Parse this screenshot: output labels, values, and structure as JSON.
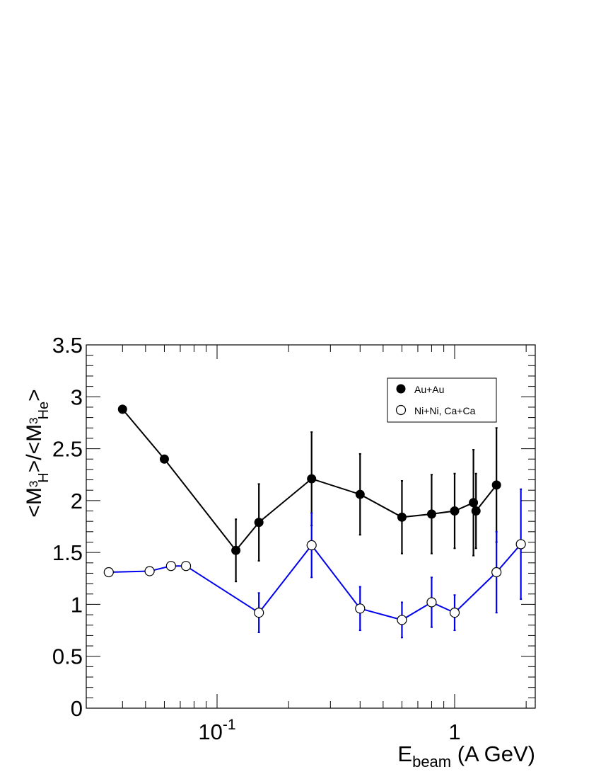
{
  "chart_data": {
    "type": "scatter",
    "xscale": "log",
    "xlim": [
      0.03,
      2.4
    ],
    "ylim": [
      0,
      3.5
    ],
    "ylabel": "<M3H>/<M3He>",
    "ylabel_parts": {
      "open": "<M",
      "sup1": "3",
      "sub1": "H",
      "mid": ">/<M",
      "sup2": "3",
      "sub2": "He",
      "close": ">"
    },
    "xlabel": "Ebeam (A GeV)",
    "xlabel_parts": {
      "main": "E",
      "sub": "beam",
      "rest": " (A GeV)"
    },
    "x_ticks": [
      {
        "value": 0.1,
        "base": "10",
        "exp": "-1"
      },
      {
        "value": 1,
        "base": "1",
        "exp": ""
      }
    ],
    "y_ticks": [
      "0",
      "0.5",
      "1",
      "1.5",
      "2",
      "2.5",
      "3",
      "3.5"
    ],
    "grid": false,
    "legend_position": "top-right",
    "series": [
      {
        "name": "Au+Au",
        "color": "#000000",
        "marker": "filled-circle",
        "points": [
          {
            "x": 0.04,
            "y": 2.88,
            "err": 0
          },
          {
            "x": 0.06,
            "y": 2.4,
            "err": 0
          },
          {
            "x": 0.12,
            "y": 1.52,
            "err": 0.3
          },
          {
            "x": 0.15,
            "y": 1.79,
            "err": 0.37
          },
          {
            "x": 0.25,
            "y": 2.21,
            "err": 0.45
          },
          {
            "x": 0.4,
            "y": 2.06,
            "err": 0.39
          },
          {
            "x": 0.6,
            "y": 1.84,
            "err": 0.35
          },
          {
            "x": 0.8,
            "y": 1.87,
            "err": 0.38
          },
          {
            "x": 1.0,
            "y": 1.9,
            "err": 0.36
          },
          {
            "x": 1.2,
            "y": 1.98,
            "err": 0.51
          },
          {
            "x": 1.23,
            "y": 1.9,
            "err": 0.36
          },
          {
            "x": 1.5,
            "y": 2.15,
            "err": 0.55
          }
        ]
      },
      {
        "name": "Ni+Ni, Ca+Ca",
        "color": "#0000ee",
        "marker": "open-circle",
        "points": [
          {
            "x": 0.035,
            "y": 1.31,
            "err": 0
          },
          {
            "x": 0.052,
            "y": 1.32,
            "err": 0
          },
          {
            "x": 0.064,
            "y": 1.37,
            "err": 0
          },
          {
            "x": 0.074,
            "y": 1.37,
            "err": 0
          },
          {
            "x": 0.15,
            "y": 0.92,
            "err": 0.19
          },
          {
            "x": 0.25,
            "y": 1.57,
            "err": 0.31
          },
          {
            "x": 0.4,
            "y": 0.96,
            "err": 0.21
          },
          {
            "x": 0.6,
            "y": 0.85,
            "err": 0.17
          },
          {
            "x": 0.8,
            "y": 1.02,
            "err": 0.24
          },
          {
            "x": 1.0,
            "y": 0.92,
            "err": 0.17
          },
          {
            "x": 1.5,
            "y": 1.31,
            "err": 0.39
          },
          {
            "x": 1.9,
            "y": 1.58,
            "err": 0.53
          }
        ]
      }
    ]
  }
}
